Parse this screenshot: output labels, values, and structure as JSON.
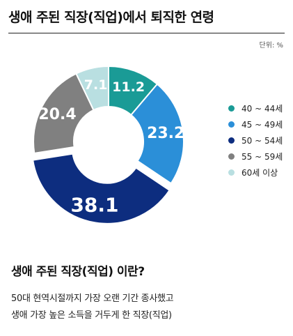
{
  "title": "생애 주된 직장(직업)에서 퇴직한 연령",
  "unit": "단위: %",
  "chart_data": {
    "type": "pie",
    "style": "donut",
    "categories": [
      "40 ~ 44세",
      "45 ~ 49세",
      "50 ~ 54세",
      "55 ~ 59세",
      "60세 이상"
    ],
    "values": [
      11.2,
      23.2,
      38.1,
      20.4,
      7.1
    ],
    "colors": [
      "#1a9b96",
      "#2b8fd8",
      "#0d2d7f",
      "#808080",
      "#b9dfe1"
    ],
    "legend_position": "right"
  },
  "footer": {
    "question": "생애 주된 직장(직업) 이란?",
    "line1": "50대 현역시절까지 가장 오랜 기간 종사했고",
    "line2": "생애 가장 높은 소득을 거두게 한 직장(직업)"
  }
}
